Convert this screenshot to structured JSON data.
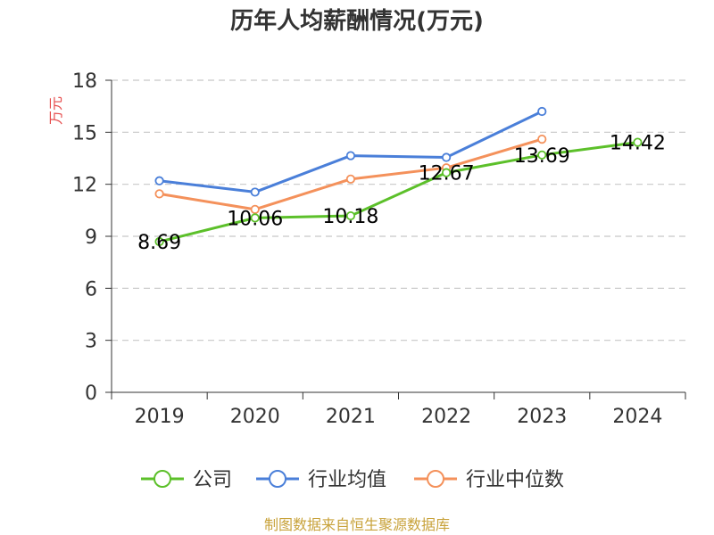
{
  "chart_data": {
    "type": "line",
    "title": "历年人均薪酬情况(万元)",
    "ylabel": "万元",
    "xlabel": "",
    "categories": [
      "2019",
      "2020",
      "2021",
      "2022",
      "2023",
      "2024"
    ],
    "ylim": [
      0,
      18
    ],
    "yticks": [
      0,
      3,
      6,
      9,
      12,
      15,
      18
    ],
    "grid": true,
    "legend_position": "bottom",
    "series": [
      {
        "name": "公司",
        "color": "#5cc02a",
        "values": [
          8.69,
          10.06,
          10.18,
          12.67,
          13.69,
          14.42
        ],
        "labels": [
          "8.69",
          "10.06",
          "10.18",
          "12.67",
          "13.69",
          "14.42"
        ]
      },
      {
        "name": "行业均值",
        "color": "#4a7fd9",
        "values": [
          12.2,
          11.55,
          13.65,
          13.55,
          16.2,
          null
        ]
      },
      {
        "name": "行业中位数",
        "color": "#f4915b",
        "values": [
          11.45,
          10.55,
          12.3,
          12.95,
          14.6,
          null
        ]
      }
    ],
    "source": "制图数据来自恒生聚源数据库",
    "colors": {
      "ylabel": "#e64b4b",
      "source": "#c8a23a",
      "grid": "#c8c8c8",
      "axis": "#333333"
    }
  }
}
